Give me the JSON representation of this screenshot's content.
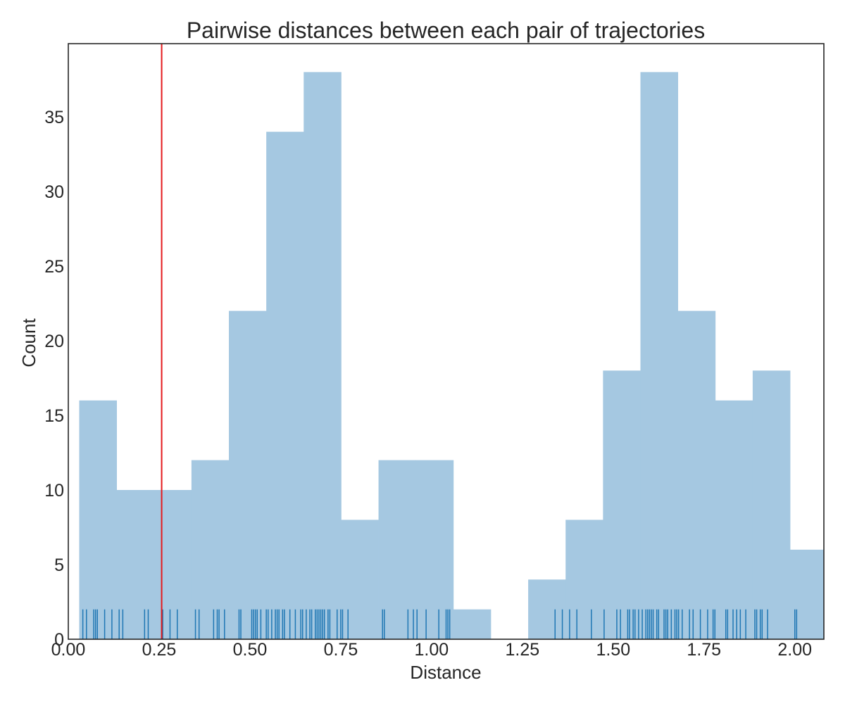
{
  "chart_data": {
    "type": "bar",
    "title": "Pairwise distances between each pair of trajectories",
    "xlabel": "Distance",
    "ylabel": "Count",
    "xlim": [
      0.0,
      2.08
    ],
    "ylim": [
      0,
      40
    ],
    "grid": false,
    "bar_color": "#a5c8e1",
    "rug_color": "#1f77b4",
    "threshold_color": "#e41a1c",
    "bin_edges": [
      0.03,
      0.133,
      0.236,
      0.339,
      0.442,
      0.545,
      0.648,
      0.751,
      0.854,
      0.957,
      1.06,
      1.163,
      1.266,
      1.369,
      1.472,
      1.575,
      1.678,
      1.781,
      1.884,
      1.987,
      2.09
    ],
    "values": [
      16,
      10,
      10,
      12,
      22,
      34,
      38,
      8,
      12,
      12,
      2,
      0,
      4,
      8,
      18,
      38,
      22,
      16,
      18,
      6
    ],
    "threshold": 0.257,
    "x_ticks": [
      "0.00",
      "0.25",
      "0.50",
      "0.75",
      "1.00",
      "1.25",
      "1.50",
      "1.75",
      "2.00"
    ],
    "y_ticks": [
      "0",
      "5",
      "10",
      "15",
      "20",
      "25",
      "30",
      "35"
    ],
    "rug": [
      0.04,
      0.05,
      0.07,
      0.075,
      0.08,
      0.1,
      0.12,
      0.14,
      0.15,
      0.21,
      0.22,
      0.26,
      0.28,
      0.3,
      0.35,
      0.36,
      0.4,
      0.41,
      0.415,
      0.43,
      0.47,
      0.475,
      0.505,
      0.51,
      0.515,
      0.52,
      0.53,
      0.545,
      0.55,
      0.56,
      0.57,
      0.575,
      0.58,
      0.59,
      0.595,
      0.61,
      0.625,
      0.64,
      0.645,
      0.655,
      0.665,
      0.67,
      0.68,
      0.685,
      0.69,
      0.695,
      0.7,
      0.705,
      0.715,
      0.72,
      0.74,
      0.75,
      0.755,
      0.77,
      0.865,
      0.87,
      0.935,
      0.95,
      0.96,
      0.985,
      1.02,
      1.04,
      1.045,
      1.05,
      1.34,
      1.36,
      1.38,
      1.4,
      1.44,
      1.475,
      1.51,
      1.52,
      1.54,
      1.545,
      1.555,
      1.56,
      1.57,
      1.58,
      1.59,
      1.595,
      1.6,
      1.605,
      1.61,
      1.62,
      1.625,
      1.64,
      1.645,
      1.65,
      1.66,
      1.67,
      1.675,
      1.68,
      1.69,
      1.71,
      1.72,
      1.74,
      1.76,
      1.775,
      1.78,
      1.81,
      1.815,
      1.83,
      1.84,
      1.85,
      1.865,
      1.89,
      1.895,
      1.905,
      1.91,
      1.925,
      2.0,
      2.005
    ]
  }
}
